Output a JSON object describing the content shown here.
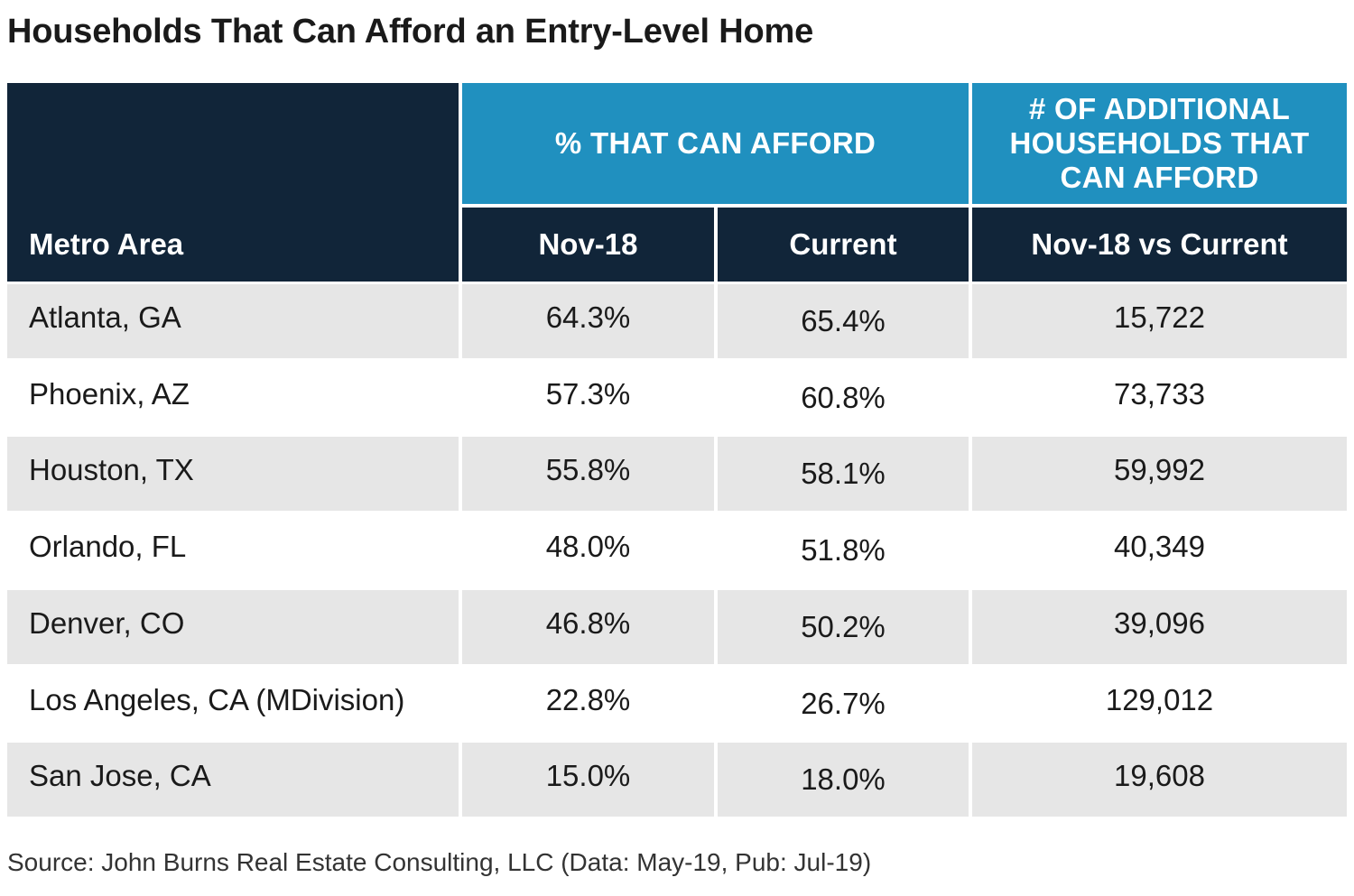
{
  "chart_data": {
    "type": "table",
    "title": "Households That Can Afford an Entry-Level Home",
    "header_groups": [
      {
        "label": ""
      },
      {
        "label": "% THAT CAN AFFORD"
      },
      {
        "label": "# OF ADDITIONAL HOUSEHOLDS THAT CAN AFFORD"
      }
    ],
    "columns": [
      "Metro Area",
      "Nov-18",
      "Current",
      "Nov-18 vs Current"
    ],
    "rows": [
      {
        "metro": "Atlanta, GA",
        "nov18": "64.3%",
        "current": "65.4%",
        "additional": "15,722"
      },
      {
        "metro": "Phoenix, AZ",
        "nov18": "57.3%",
        "current": "60.8%",
        "additional": "73,733"
      },
      {
        "metro": "Houston, TX",
        "nov18": "55.8%",
        "current": "58.1%",
        "additional": "59,992"
      },
      {
        "metro": "Orlando, FL",
        "nov18": "48.0%",
        "current": "51.8%",
        "additional": "40,349"
      },
      {
        "metro": "Denver, CO",
        "nov18": "46.8%",
        "current": "50.2%",
        "additional": "39,096"
      },
      {
        "metro": "Los Angeles, CA (MDivision)",
        "nov18": "22.8%",
        "current": "26.7%",
        "additional": "129,012"
      },
      {
        "metro": "San Jose, CA",
        "nov18": "15.0%",
        "current": "18.0%",
        "additional": "19,608"
      }
    ],
    "source": "Source: John Burns Real Estate Consulting, LLC (Data: May-19, Pub: Jul-19)"
  },
  "colors": {
    "header_dark": "#112539",
    "header_blue": "#2090bf",
    "row_grey": "#e6e6e6",
    "row_white": "#ffffff"
  }
}
